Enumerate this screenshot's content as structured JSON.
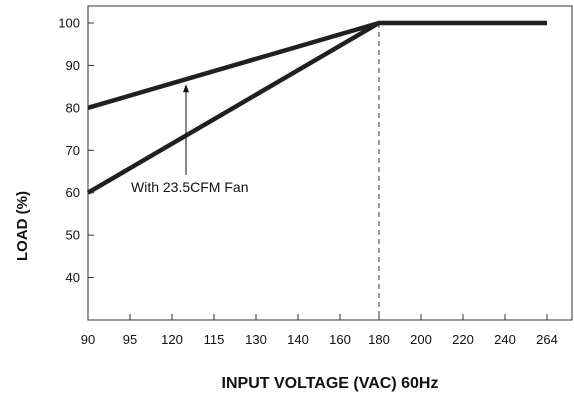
{
  "chart_data": {
    "type": "line",
    "xlabel": "INPUT VOLTAGE (VAC) 60Hz",
    "ylabel": "LOAD (%)",
    "x_ticks": [
      "90",
      "95",
      "120",
      "115",
      "130",
      "140",
      "160",
      "180",
      "200",
      "220",
      "240",
      "264"
    ],
    "y_ticks": [
      "100",
      "90",
      "80",
      "70",
      "60",
      "50",
      "40"
    ],
    "ylim": [
      30,
      104
    ],
    "grid": false,
    "series": [
      {
        "points": [
          {
            "x": "90",
            "y": 60
          },
          {
            "x": "180",
            "y": 100
          },
          {
            "x": "264",
            "y": 100
          }
        ]
      },
      {
        "points": [
          {
            "x": "90",
            "y": 80
          },
          {
            "x": "180",
            "y": 100
          }
        ]
      }
    ],
    "annotations": [
      {
        "text": "With 23.5CFM Fan"
      }
    ],
    "reference_line": {
      "x": "180",
      "style": "dashed"
    },
    "color": "#231f1f"
  }
}
